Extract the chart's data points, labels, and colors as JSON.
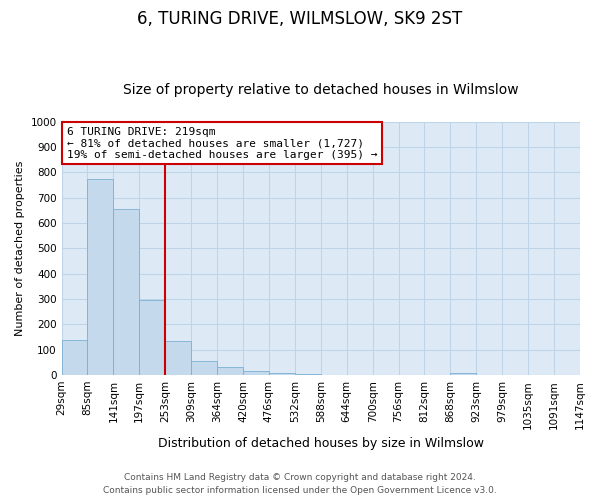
{
  "title": "6, TURING DRIVE, WILMSLOW, SK9 2ST",
  "subtitle": "Size of property relative to detached houses in Wilmslow",
  "xlabel": "Distribution of detached houses by size in Wilmslow",
  "ylabel": "Number of detached properties",
  "bar_values": [
    140,
    775,
    655,
    295,
    135,
    57,
    32,
    17,
    8,
    5,
    0,
    0,
    0,
    0,
    0,
    10,
    0,
    0,
    0,
    0
  ],
  "bin_labels": [
    "29sqm",
    "85sqm",
    "141sqm",
    "197sqm",
    "253sqm",
    "309sqm",
    "364sqm",
    "420sqm",
    "476sqm",
    "532sqm",
    "588sqm",
    "644sqm",
    "700sqm",
    "756sqm",
    "812sqm",
    "868sqm",
    "923sqm",
    "979sqm",
    "1035sqm",
    "1091sqm",
    "1147sqm"
  ],
  "bar_color": "#c5d9ed",
  "bar_edge_color": "#7bafd4",
  "vline_color": "#cc0000",
  "annotation_title": "6 TURING DRIVE: 219sqm",
  "annotation_line1": "← 81% of detached houses are smaller (1,727)",
  "annotation_line2": "19% of semi-detached houses are larger (395) →",
  "annotation_box_facecolor": "#ffffff",
  "annotation_box_edgecolor": "#cc0000",
  "ylim": [
    0,
    1000
  ],
  "yticks": [
    0,
    100,
    200,
    300,
    400,
    500,
    600,
    700,
    800,
    900,
    1000
  ],
  "footnote1": "Contains HM Land Registry data © Crown copyright and database right 2024.",
  "footnote2": "Contains public sector information licensed under the Open Government Licence v3.0.",
  "background_color": "#ffffff",
  "plot_bg_color": "#ddeaf6",
  "grid_color": "#c0d4e8",
  "title_fontsize": 12,
  "subtitle_fontsize": 10,
  "ylabel_fontsize": 8,
  "xlabel_fontsize": 9,
  "tick_fontsize": 7.5,
  "annotation_fontsize": 8,
  "footnote_fontsize": 6.5
}
